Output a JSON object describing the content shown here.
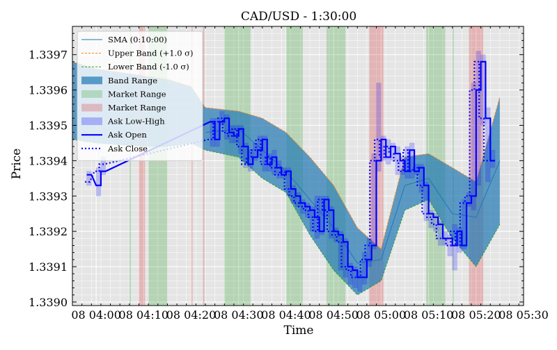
{
  "chart_data": {
    "type": "line",
    "title": "CAD/USD - 1:30:00",
    "xlabel": "Time",
    "ylabel": "Price",
    "x_start": "08 03:55",
    "x_ticks": [
      "08 04:00",
      "08 04:10",
      "08 04:20",
      "08 04:30",
      "08 04:40",
      "08 04:50",
      "08 05:00",
      "08 05:10",
      "08 05:20",
      "08 05:30"
    ],
    "y_ticks": [
      "1.3390",
      "1.3391",
      "1.3392",
      "1.3393",
      "1.3394",
      "1.3395",
      "1.3396",
      "1.3397"
    ],
    "xlim": [
      "08 03:55",
      "08 05:30"
    ],
    "ylim": [
      1.33899,
      1.33978
    ],
    "grid": true,
    "legend_position": "upper left",
    "legend": [
      {
        "label": "SMA (0:10:00)",
        "kind": "line",
        "color": "#1f77b4"
      },
      {
        "label": "Upper Band (+1.0 σ)",
        "kind": "dash",
        "color": "#ff7f0e"
      },
      {
        "label": "Lower Band (-1.0 σ)",
        "kind": "dash",
        "color": "#2ca02c"
      },
      {
        "label": "Band Range",
        "kind": "patch",
        "color": "#1f77b4"
      },
      {
        "label": "Market Range",
        "kind": "patch",
        "color": "#2ca02c"
      },
      {
        "label": "Market Range",
        "kind": "patch",
        "color": "#d62728"
      },
      {
        "label": "Ask Low-High",
        "kind": "patch",
        "color": "#0000ff"
      },
      {
        "label": "Ask Open",
        "kind": "line",
        "color": "#0000ff"
      },
      {
        "label": "Ask Close",
        "kind": "dot",
        "color": "#0000ff"
      }
    ],
    "market_ranges_green": [
      [
        "08 04:07",
        "08 04:07.3"
      ],
      [
        "08 04:11",
        "08 04:15"
      ],
      [
        "08 04:27",
        "08 04:32.5"
      ],
      [
        "08 04:40",
        "08 04:43.5"
      ],
      [
        "08 04:48.5",
        "08 04:52.5"
      ],
      [
        "08 05:09.5",
        "08 05:13.5"
      ],
      [
        "08 05:15",
        "08 05:15.3"
      ]
    ],
    "market_ranges_red": [
      [
        "08 04:09",
        "08 04:10.3"
      ],
      [
        "08 04:20",
        "08 04:20.3"
      ],
      [
        "08 04:22.5",
        "08 04:22.8"
      ],
      [
        "08 04:57.5",
        "08 05:00.5"
      ],
      [
        "08 05:18.5",
        "08 05:21.5"
      ]
    ],
    "sma": {
      "x": [
        "08 04:23",
        "08 04:30",
        "08 04:40",
        "08 04:50",
        "08 04:55",
        "08 05:00",
        "08 05:05",
        "08 05:10",
        "08 05:15",
        "08 05:20",
        "08 05:25"
      ],
      "y": [
        1.33948,
        1.33949,
        1.33937,
        1.33921,
        1.33911,
        1.33912,
        1.33933,
        1.33935,
        1.33925,
        1.33924,
        1.3394
      ]
    },
    "upper_band": {
      "x": [
        "08 03:55",
        "08 04:00",
        "08 04:10",
        "08 04:15",
        "08 04:20",
        "08 04:23",
        "08 04:30",
        "08 04:35",
        "08 04:40",
        "08 04:45",
        "08 04:50",
        "08 04:55",
        "08 05:00",
        "08 05:05",
        "08 05:10",
        "08 05:15",
        "08 05:20",
        "08 05:25"
      ],
      "y": [
        1.33968,
        1.33966,
        1.33964,
        1.33963,
        1.33961,
        1.33955,
        1.33954,
        1.33952,
        1.33948,
        1.33941,
        1.33933,
        1.33921,
        1.33915,
        1.33941,
        1.33942,
        1.33938,
        1.33934,
        1.33958
      ]
    },
    "lower_band": {
      "x": [
        "08 03:55",
        "08 04:00",
        "08 04:10",
        "08 04:15",
        "08 04:20",
        "08 04:23",
        "08 04:30",
        "08 04:35",
        "08 04:40",
        "08 04:45",
        "08 04:50",
        "08 04:55",
        "08 05:00",
        "08 05:05",
        "08 05:10",
        "08 05:15",
        "08 05:20",
        "08 05:25"
      ],
      "y": [
        1.33946,
        1.33945,
        1.33944,
        1.33944,
        1.33945,
        1.33943,
        1.33941,
        1.33935,
        1.33931,
        1.33919,
        1.33909,
        1.33902,
        1.33906,
        1.33926,
        1.33929,
        1.33918,
        1.3391,
        1.33922
      ]
    },
    "ask_open": {
      "x": [
        "08 03:58",
        "08 04:00",
        "08 04:01",
        "08 04:24",
        "08 04:25",
        "08 04:26",
        "08 04:27",
        "08 04:28",
        "08 04:29",
        "08 04:30",
        "08 04:31",
        "08 04:32",
        "08 04:33",
        "08 04:34",
        "08 04:35",
        "08 04:36",
        "08 04:37",
        "08 04:38",
        "08 04:39",
        "08 04:40",
        "08 04:41",
        "08 04:42",
        "08 04:43",
        "08 04:44",
        "08 04:45",
        "08 04:46",
        "08 04:47",
        "08 04:48",
        "08 04:49",
        "08 04:50",
        "08 04:51",
        "08 04:52",
        "08 04:53",
        "08 04:54",
        "08 04:55",
        "08 04:56",
        "08 04:57",
        "08 04:58",
        "08 04:59",
        "08 05:00",
        "08 05:01",
        "08 05:02",
        "08 05:03",
        "08 05:04",
        "08 05:05",
        "08 05:06",
        "08 05:07",
        "08 05:08",
        "08 05:09",
        "08 05:10",
        "08 05:11",
        "08 05:12",
        "08 05:13",
        "08 05:14",
        "08 05:15",
        "08 05:16",
        "08 05:17",
        "08 05:18",
        "08 05:19",
        "08 05:20",
        "08 05:21",
        "08 05:22",
        "08 05:23"
      ],
      "y": [
        1.33936,
        1.33933,
        1.33937,
        1.33951,
        1.33946,
        1.33951,
        1.33952,
        1.33948,
        1.33947,
        1.33949,
        1.33944,
        1.33939,
        1.33941,
        1.33943,
        1.33946,
        1.33939,
        1.33941,
        1.33938,
        1.33936,
        1.33937,
        1.33932,
        1.3393,
        1.33928,
        1.33927,
        1.33926,
        1.33924,
        1.3392,
        1.33929,
        1.33926,
        1.3392,
        1.33919,
        1.33917,
        1.3391,
        1.33909,
        1.33907,
        1.33907,
        1.33912,
        1.33916,
        1.3394,
        1.33946,
        1.33941,
        1.33944,
        1.33942,
        1.3394,
        1.33937,
        1.33943,
        1.33937,
        1.33938,
        1.33933,
        1.33925,
        1.33924,
        1.33922,
        1.33918,
        1.33918,
        1.33916,
        1.3392,
        1.33916,
        1.33928,
        1.3393,
        1.3396,
        1.33968,
        1.33952,
        1.3394
      ]
    },
    "ask_close": {
      "x": [
        "08 03:58",
        "08 04:00",
        "08 04:01",
        "08 04:24",
        "08 04:25",
        "08 04:26",
        "08 04:27",
        "08 04:28",
        "08 04:29",
        "08 04:30",
        "08 04:31",
        "08 04:32",
        "08 04:33",
        "08 04:34",
        "08 04:35",
        "08 04:36",
        "08 04:37",
        "08 04:38",
        "08 04:39",
        "08 04:40",
        "08 04:41",
        "08 04:42",
        "08 04:43",
        "08 04:44",
        "08 04:45",
        "08 04:46",
        "08 04:47",
        "08 04:48",
        "08 04:49",
        "08 04:50",
        "08 04:51",
        "08 04:52",
        "08 04:53",
        "08 04:54",
        "08 04:55",
        "08 04:56",
        "08 04:57",
        "08 04:58",
        "08 04:59",
        "08 05:00",
        "08 05:01",
        "08 05:02",
        "08 05:03",
        "08 05:04",
        "08 05:05",
        "08 05:06",
        "08 05:07",
        "08 05:08",
        "08 05:09",
        "08 05:10",
        "08 05:11",
        "08 05:12",
        "08 05:13",
        "08 05:14",
        "08 05:15",
        "08 05:16",
        "08 05:17",
        "08 05:18",
        "08 05:19",
        "08 05:20",
        "08 05:21",
        "08 05:22",
        "08 05:23"
      ],
      "y": [
        1.33934,
        1.33937,
        1.33939,
        1.33946,
        1.33951,
        1.33952,
        1.33948,
        1.33947,
        1.33949,
        1.33944,
        1.33939,
        1.33941,
        1.33943,
        1.33946,
        1.33939,
        1.33941,
        1.33938,
        1.33936,
        1.33937,
        1.33932,
        1.3393,
        1.33928,
        1.33927,
        1.33926,
        1.33924,
        1.3392,
        1.33929,
        1.33926,
        1.3392,
        1.33919,
        1.33917,
        1.3391,
        1.33909,
        1.33907,
        1.33907,
        1.33912,
        1.33916,
        1.3394,
        1.33946,
        1.33941,
        1.33944,
        1.33942,
        1.3394,
        1.33937,
        1.33943,
        1.33937,
        1.33938,
        1.33933,
        1.33925,
        1.33924,
        1.33922,
        1.33918,
        1.33918,
        1.33916,
        1.3392,
        1.33916,
        1.33928,
        1.3393,
        1.3396,
        1.33968,
        1.33952,
        1.3394,
        1.3394
      ]
    },
    "ask_low_high": {
      "x": [
        "08 03:58",
        "08 04:00",
        "08 04:01",
        "08 04:24",
        "08 04:25",
        "08 04:26",
        "08 04:27",
        "08 04:28",
        "08 04:29",
        "08 04:30",
        "08 04:31",
        "08 04:32",
        "08 04:33",
        "08 04:34",
        "08 04:35",
        "08 04:36",
        "08 04:37",
        "08 04:38",
        "08 04:39",
        "08 04:40",
        "08 04:41",
        "08 04:42",
        "08 04:43",
        "08 04:44",
        "08 04:45",
        "08 04:46",
        "08 04:47",
        "08 04:48",
        "08 04:49",
        "08 04:50",
        "08 04:51",
        "08 04:52",
        "08 04:53",
        "08 04:54",
        "08 04:55",
        "08 04:56",
        "08 04:57",
        "08 04:58",
        "08 04:59",
        "08 05:00",
        "08 05:01",
        "08 05:02",
        "08 05:03",
        "08 05:04",
        "08 05:05",
        "08 05:06",
        "08 05:07",
        "08 05:08",
        "08 05:09",
        "08 05:10",
        "08 05:11",
        "08 05:12",
        "08 05:13",
        "08 05:14",
        "08 05:15",
        "08 05:16",
        "08 05:17",
        "08 05:18",
        "08 05:19",
        "08 05:20",
        "08 05:21",
        "08 05:22",
        "08 05:23"
      ],
      "low": [
        1.33933,
        1.3393,
        1.33936,
        1.33944,
        1.33944,
        1.3395,
        1.33946,
        1.33945,
        1.33945,
        1.33942,
        1.33938,
        1.33937,
        1.3394,
        1.33941,
        1.33937,
        1.33937,
        1.33936,
        1.33935,
        1.33935,
        1.3393,
        1.33928,
        1.33927,
        1.33925,
        1.33924,
        1.3392,
        1.33918,
        1.33919,
        1.33924,
        1.33918,
        1.33917,
        1.33909,
        1.33907,
        1.33905,
        1.33904,
        1.33903,
        1.33905,
        1.3391,
        1.33915,
        1.33937,
        1.3394,
        1.33939,
        1.3394,
        1.33936,
        1.33936,
        1.33935,
        1.33935,
        1.33936,
        1.33931,
        1.33923,
        1.33921,
        1.3392,
        1.33916,
        1.33916,
        1.33913,
        1.33909,
        1.33914,
        1.33915,
        1.33927,
        1.33926,
        1.33933,
        1.3395,
        1.33934,
        1.33938
      ],
      "high": [
        1.33937,
        1.33938,
        1.33941,
        1.33952,
        1.33952,
        1.33954,
        1.33953,
        1.3395,
        1.3395,
        1.3395,
        1.33945,
        1.33943,
        1.33945,
        1.33947,
        1.33947,
        1.33942,
        1.33943,
        1.3394,
        1.33938,
        1.33938,
        1.33933,
        1.33931,
        1.33929,
        1.33928,
        1.33927,
        1.3393,
        1.3393,
        1.3393,
        1.33927,
        1.33921,
        1.3392,
        1.33918,
        1.33911,
        1.3391,
        1.33909,
        1.33914,
        1.33918,
        1.33942,
        1.33962,
        1.33947,
        1.33946,
        1.33945,
        1.33944,
        1.33941,
        1.33944,
        1.33945,
        1.33939,
        1.33939,
        1.33934,
        1.33926,
        1.33925,
        1.33923,
        1.3392,
        1.33919,
        1.33922,
        1.33921,
        1.33929,
        1.33931,
        1.33962,
        1.33971,
        1.3397,
        1.33955,
        1.33943
      ]
    }
  }
}
